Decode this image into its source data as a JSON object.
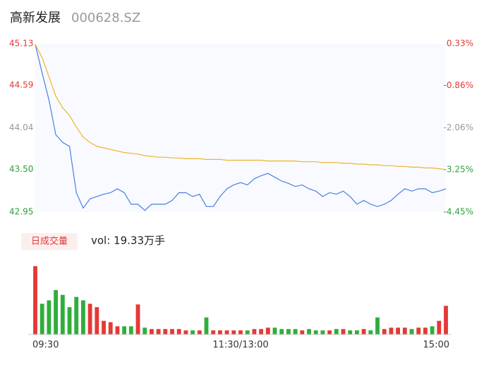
{
  "header": {
    "name": "高新发展",
    "code": "000628.SZ"
  },
  "chart_data": [
    {
      "type": "line",
      "series": [
        {
          "name": "price",
          "color": "#4a7fe0",
          "values": [
            45.12,
            44.75,
            44.4,
            43.95,
            43.85,
            43.8,
            43.2,
            43.0,
            43.12,
            43.15,
            43.18,
            43.2,
            43.25,
            43.2,
            43.05,
            43.05,
            42.97,
            43.05,
            43.05,
            43.05,
            43.1,
            43.2,
            43.2,
            43.15,
            43.18,
            43.02,
            43.02,
            43.15,
            43.25,
            43.3,
            43.33,
            43.3,
            43.38,
            43.42,
            43.45,
            43.4,
            43.35,
            43.32,
            43.28,
            43.3,
            43.25,
            43.22,
            43.15,
            43.2,
            43.18,
            43.22,
            43.15,
            43.05,
            43.1,
            43.05,
            43.02,
            43.05,
            43.1,
            43.18,
            43.25,
            43.22,
            43.25,
            43.25,
            43.2,
            43.22,
            43.25
          ]
        },
        {
          "name": "average",
          "color": "#f0b429",
          "values": [
            45.12,
            44.95,
            44.7,
            44.45,
            44.3,
            44.2,
            44.05,
            43.92,
            43.85,
            43.8,
            43.78,
            43.76,
            43.74,
            43.72,
            43.71,
            43.7,
            43.68,
            43.67,
            43.66,
            43.66,
            43.65,
            43.65,
            43.64,
            43.64,
            43.64,
            43.63,
            43.63,
            43.63,
            43.62,
            43.62,
            43.62,
            43.62,
            43.62,
            43.62,
            43.61,
            43.61,
            43.61,
            43.61,
            43.61,
            43.6,
            43.6,
            43.6,
            43.59,
            43.59,
            43.59,
            43.58,
            43.58,
            43.57,
            43.57,
            43.56,
            43.56,
            43.55,
            43.55,
            43.54,
            43.54,
            43.53,
            43.53,
            43.52,
            43.52,
            43.51,
            43.5
          ]
        }
      ],
      "ylim": [
        42.95,
        45.13
      ],
      "yticks": [
        45.13,
        44.59,
        44.04,
        {
          "value": 43.5,
          "label": "43.50"
        },
        42.95
      ],
      "ytick_colors": [
        "#e53935",
        "#e53935",
        "#999999",
        "#2e9e3a",
        "#2e9e3a"
      ],
      "y2lim": [
        -4.45,
        0.33
      ],
      "y2ticks": [
        {
          "value": 0.33,
          "label": "0.33%"
        },
        {
          "value": -0.86,
          "label": "-0.86%"
        },
        {
          "value": -2.06,
          "label": "-2.06%"
        },
        {
          "value": -3.25,
          "label": "-3.25%"
        },
        {
          "value": -4.45,
          "label": "-4.45%"
        }
      ],
      "y2tick_colors": [
        "#e53935",
        "#e53935",
        "#999999",
        "#2e9e3a",
        "#2e9e3a"
      ]
    },
    {
      "type": "bar",
      "title": "日成交量",
      "annotation": "vol: 19.33万手",
      "up_color": "#e53935",
      "down_color": "#2eae3a",
      "categories": [
        "09:30",
        null,
        null,
        null,
        null,
        null,
        null,
        null,
        null,
        null,
        null,
        null,
        null,
        null,
        null,
        null,
        null,
        null,
        null,
        null,
        null,
        null,
        null,
        null,
        null,
        null,
        null,
        null,
        null,
        null,
        "11:30/13:00",
        null,
        null,
        null,
        null,
        null,
        null,
        null,
        null,
        null,
        null,
        null,
        null,
        null,
        null,
        null,
        null,
        null,
        null,
        null,
        null,
        null,
        null,
        null,
        null,
        null,
        null,
        null,
        null,
        null,
        "15:00"
      ],
      "values": [
        100,
        45,
        50,
        65,
        58,
        40,
        55,
        50,
        45,
        40,
        20,
        18,
        12,
        12,
        12,
        44,
        10,
        8,
        8,
        8,
        8,
        8,
        6,
        6,
        6,
        25,
        6,
        6,
        6,
        6,
        6,
        6,
        8,
        8,
        10,
        10,
        8,
        8,
        8,
        6,
        8,
        6,
        6,
        6,
        8,
        8,
        6,
        6,
        8,
        6,
        25,
        8,
        10,
        10,
        10,
        8,
        10,
        10,
        12,
        20,
        42
      ]
    }
  ]
}
